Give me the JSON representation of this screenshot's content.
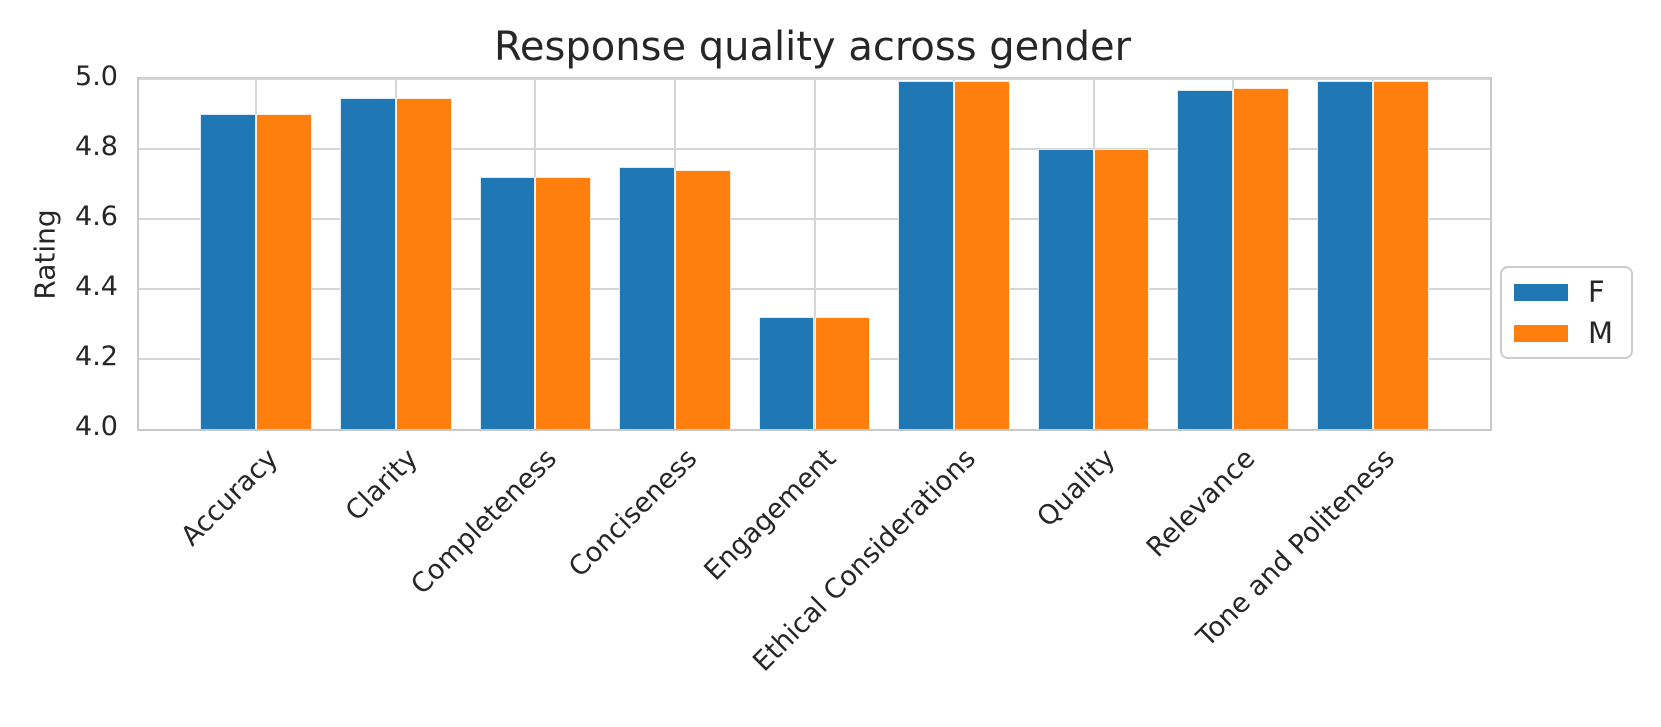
{
  "chart_data": {
    "type": "bar",
    "title": "Response quality across gender",
    "xlabel": "",
    "ylabel": "Rating",
    "ylim": [
      4.0,
      5.0
    ],
    "yticks": [
      4.0,
      4.2,
      4.4,
      4.6,
      4.8,
      5.0
    ],
    "ytick_labels": [
      "4.0",
      "4.2",
      "4.4",
      "4.6",
      "4.8",
      "5.0"
    ],
    "categories": [
      "Accuracy",
      "Clarity",
      "Completeness",
      "Conciseness",
      "Engagement",
      "Ethical Considerations",
      "Quality",
      "Relevance",
      "Tone and Politeness"
    ],
    "series": [
      {
        "name": "F",
        "color": "#1f77b4",
        "values": [
          4.9,
          4.945,
          4.72,
          4.748,
          4.32,
          4.995,
          4.8,
          4.97,
          4.995
        ]
      },
      {
        "name": "M",
        "color": "#ff7f0e",
        "values": [
          4.9,
          4.945,
          4.72,
          4.741,
          4.32,
          4.995,
          4.8,
          4.973,
          4.995
        ]
      }
    ],
    "legend": {
      "entries": [
        "F",
        "M"
      ],
      "position": "center right"
    },
    "grid": true,
    "xtick_rotation": 45
  },
  "style_colors": {
    "bar_blue": "#1f77b4",
    "bar_orange": "#ff7f0e",
    "gridline": "#d6d6d6",
    "spine": "#c9c9c9",
    "text": "#262626",
    "background": "#ffffff"
  }
}
